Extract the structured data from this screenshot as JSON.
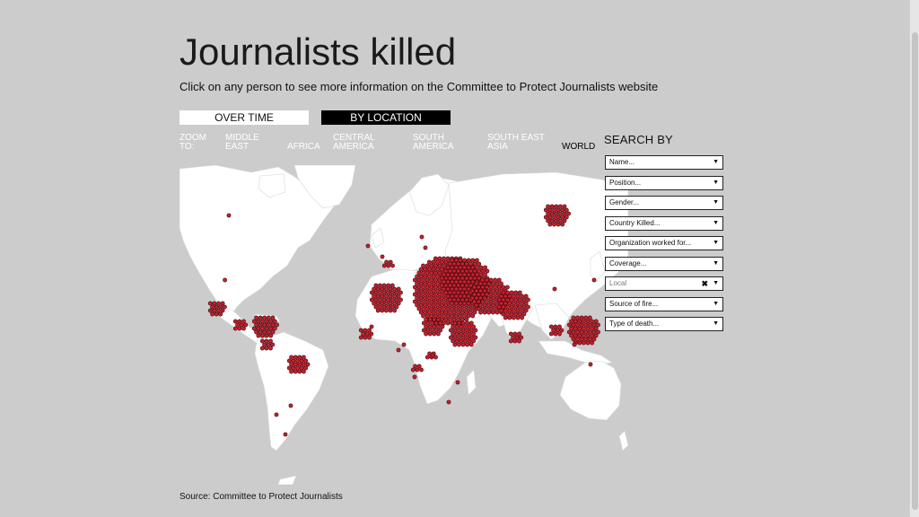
{
  "title": "Journalists killed",
  "subtitle": "Click on any person to see more information on the Committee to Protect Journalists website",
  "tabs": {
    "over_time": "OVER TIME",
    "by_location": "BY LOCATION"
  },
  "zoom": {
    "label": "ZOOM TO:",
    "options": [
      "MIDDLE EAST",
      "AFRICA",
      "CENTRAL AMERICA",
      "SOUTH AMERICA",
      "SOUTH EAST ASIA",
      "WORLD"
    ],
    "active": "WORLD"
  },
  "search": {
    "heading": "SEARCH BY",
    "filters": [
      {
        "label": "Name..."
      },
      {
        "label": "Position..."
      },
      {
        "label": "Gender..."
      },
      {
        "label": "Country Killed..."
      },
      {
        "label": "Organization worked for..."
      },
      {
        "label": "Coverage..."
      },
      {
        "label": "Local",
        "selected": true
      },
      {
        "label": "Source of fire..."
      },
      {
        "label": "Type of death..."
      }
    ]
  },
  "source": "Source: Committee to Protect Journalists",
  "colors": {
    "marker": "#cc1f2e",
    "marker_stroke": "#3a0a0d",
    "land": "#ffffff",
    "ocean": "#cccccc"
  }
}
